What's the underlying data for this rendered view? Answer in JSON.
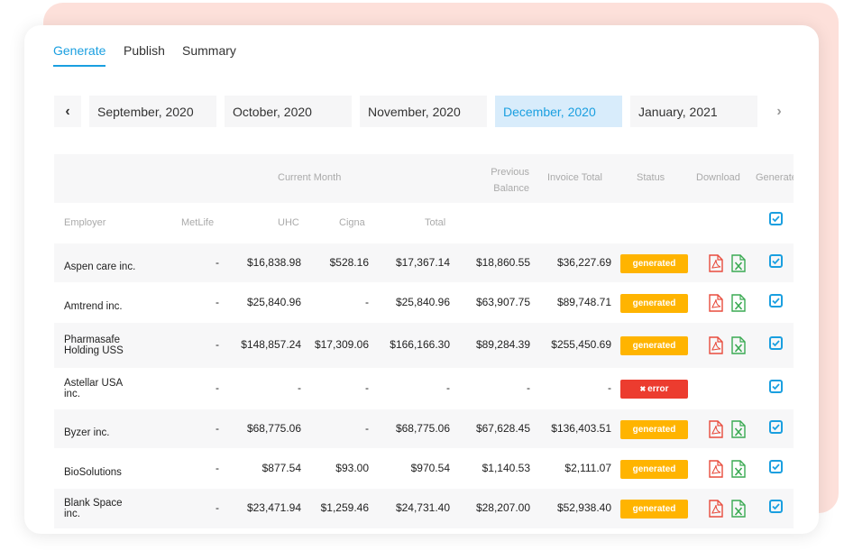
{
  "tabs": [
    {
      "label": "Generate",
      "active": true
    },
    {
      "label": "Publish",
      "active": false
    },
    {
      "label": "Summary",
      "active": false
    }
  ],
  "months": [
    {
      "label": "September, 2020",
      "active": false
    },
    {
      "label": "October, 2020",
      "active": false
    },
    {
      "label": "November, 2020",
      "active": false
    },
    {
      "label": "December, 2020",
      "active": true
    },
    {
      "label": "January, 2021",
      "active": false
    }
  ],
  "nav": {
    "prev_icon": "chevron-left-icon",
    "next_icon": "chevron-right-icon"
  },
  "table": {
    "group_header": "Current Month",
    "previous_balance": "Previous Balance",
    "previous_balance_line1": "Previous",
    "previous_balance_line2": "Balance",
    "invoice_total": "Invoice Total",
    "status": "Status",
    "download": "Download",
    "generate": "Generate",
    "columns": {
      "employer": "Employer",
      "metlife": "MetLife",
      "uhc": "UHC",
      "cigna": "Cigna",
      "total": "Total"
    },
    "rows": [
      {
        "employer_line1": "Aspen care inc.",
        "employer_line2": "",
        "metlife": "-",
        "uhc": "$16,838.98",
        "cigna": "$528.16",
        "total": "$17,367.14",
        "previous_balance": "$18,860.55",
        "invoice_total": "$36,227.69",
        "status": "generated",
        "status_type": "generated",
        "has_download": true
      },
      {
        "employer_line1": "Amtrend inc.",
        "employer_line2": "",
        "metlife": "-",
        "uhc": "$25,840.96",
        "cigna": "-",
        "total": "$25,840.96",
        "previous_balance": "$63,907.75",
        "invoice_total": "$89,748.71",
        "status": "generated",
        "status_type": "generated",
        "has_download": true
      },
      {
        "employer_line1": "Pharmasafe",
        "employer_line2": "Holding USS",
        "metlife": "-",
        "uhc": "$148,857.24",
        "cigna": "$17,309.06",
        "total": "$166,166.30",
        "previous_balance": "$89,284.39",
        "invoice_total": "$255,450.69",
        "status": "generated",
        "status_type": "generated",
        "has_download": true
      },
      {
        "employer_line1": "Astellar USA",
        "employer_line2": "inc.",
        "metlife": "-",
        "uhc": "-",
        "cigna": "-",
        "total": "-",
        "previous_balance": "-",
        "invoice_total": "-",
        "status": "error",
        "status_type": "error",
        "has_download": false
      },
      {
        "employer_line1": "Byzer inc.",
        "employer_line2": "",
        "metlife": "-",
        "uhc": "$68,775.06",
        "cigna": "-",
        "total": "$68,775.06",
        "previous_balance": "$67,628.45",
        "invoice_total": "$136,403.51",
        "status": "generated",
        "status_type": "generated",
        "has_download": true
      },
      {
        "employer_line1": "BioSolutions",
        "employer_line2": "",
        "metlife": "-",
        "uhc": "$877.54",
        "cigna": "$93.00",
        "total": "$970.54",
        "previous_balance": "$1,140.53",
        "invoice_total": "$2,111.07",
        "status": "generated",
        "status_type": "generated",
        "has_download": true
      },
      {
        "employer_line1": "Blank Space",
        "employer_line2": "inc.",
        "metlife": "-",
        "uhc": "$23,471.94",
        "cigna": "$1,259.46",
        "total": "$24,731.40",
        "previous_balance": "$28,207.00",
        "invoice_total": "$52,938.40",
        "status": "generated",
        "status_type": "generated",
        "has_download": true
      }
    ]
  },
  "colors": {
    "accent": "#1a9fe0",
    "generated": "#ffb400",
    "error": "#ec3c2f",
    "pdf": "#e84c3d",
    "excel": "#3aaa52",
    "backdrop": "#fde0da"
  },
  "icons": {
    "pdf": "pdf-file-icon",
    "excel": "excel-file-icon",
    "checkbox": "checkbox-checked-icon",
    "error": "x-icon"
  }
}
